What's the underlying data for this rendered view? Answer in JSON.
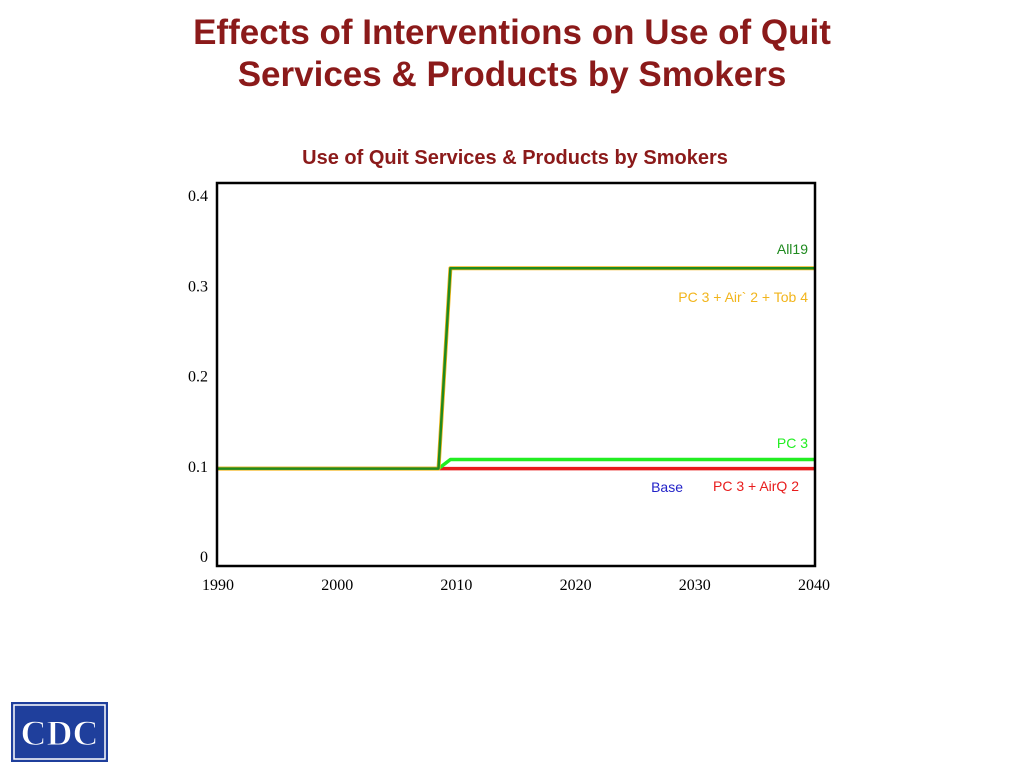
{
  "slide": {
    "title_line1": "Effects of Interventions on Use of Quit",
    "title_line2": "Services & Products by Smokers"
  },
  "logo": {
    "text": "CDC",
    "color": "#1f3f9c"
  },
  "chart_data": {
    "type": "line",
    "title": "Use of Quit Services & Products by Smokers",
    "xlabel": "",
    "ylabel": "",
    "xlim": [
      1990,
      2040
    ],
    "ylim": [
      0,
      0.4
    ],
    "x_ticks": [
      "1990",
      "2000",
      "2010",
      "2020",
      "2030",
      "2040"
    ],
    "y_ticks": [
      "0",
      "0.1",
      "0.2",
      "0.3",
      "0.4"
    ],
    "grid": false,
    "series": [
      {
        "name": "All19",
        "color": "#1f8a1f",
        "x": [
          1990,
          2008.5,
          2009.5,
          2040
        ],
        "y": [
          0.098,
          0.098,
          0.32,
          0.32
        ]
      },
      {
        "name": "PC 3 + Air` 2 + Tob 4",
        "color": "#f2b51c",
        "x": [
          1990,
          2008.5,
          2009.5,
          2040
        ],
        "y": [
          0.098,
          0.098,
          0.32,
          0.32
        ]
      },
      {
        "name": "PC 3",
        "color": "#22ee22",
        "x": [
          1990,
          2008.5,
          2009.5,
          2040
        ],
        "y": [
          0.098,
          0.098,
          0.108,
          0.108
        ]
      },
      {
        "name": "PC 3 + AirQ 2",
        "color": "#e81c1c",
        "x": [
          1990,
          2040
        ],
        "y": [
          0.098,
          0.098
        ]
      },
      {
        "name": "Base",
        "color": "#2323c8",
        "x": [
          1990,
          2040
        ],
        "y": [
          0.098,
          0.098
        ]
      }
    ]
  }
}
